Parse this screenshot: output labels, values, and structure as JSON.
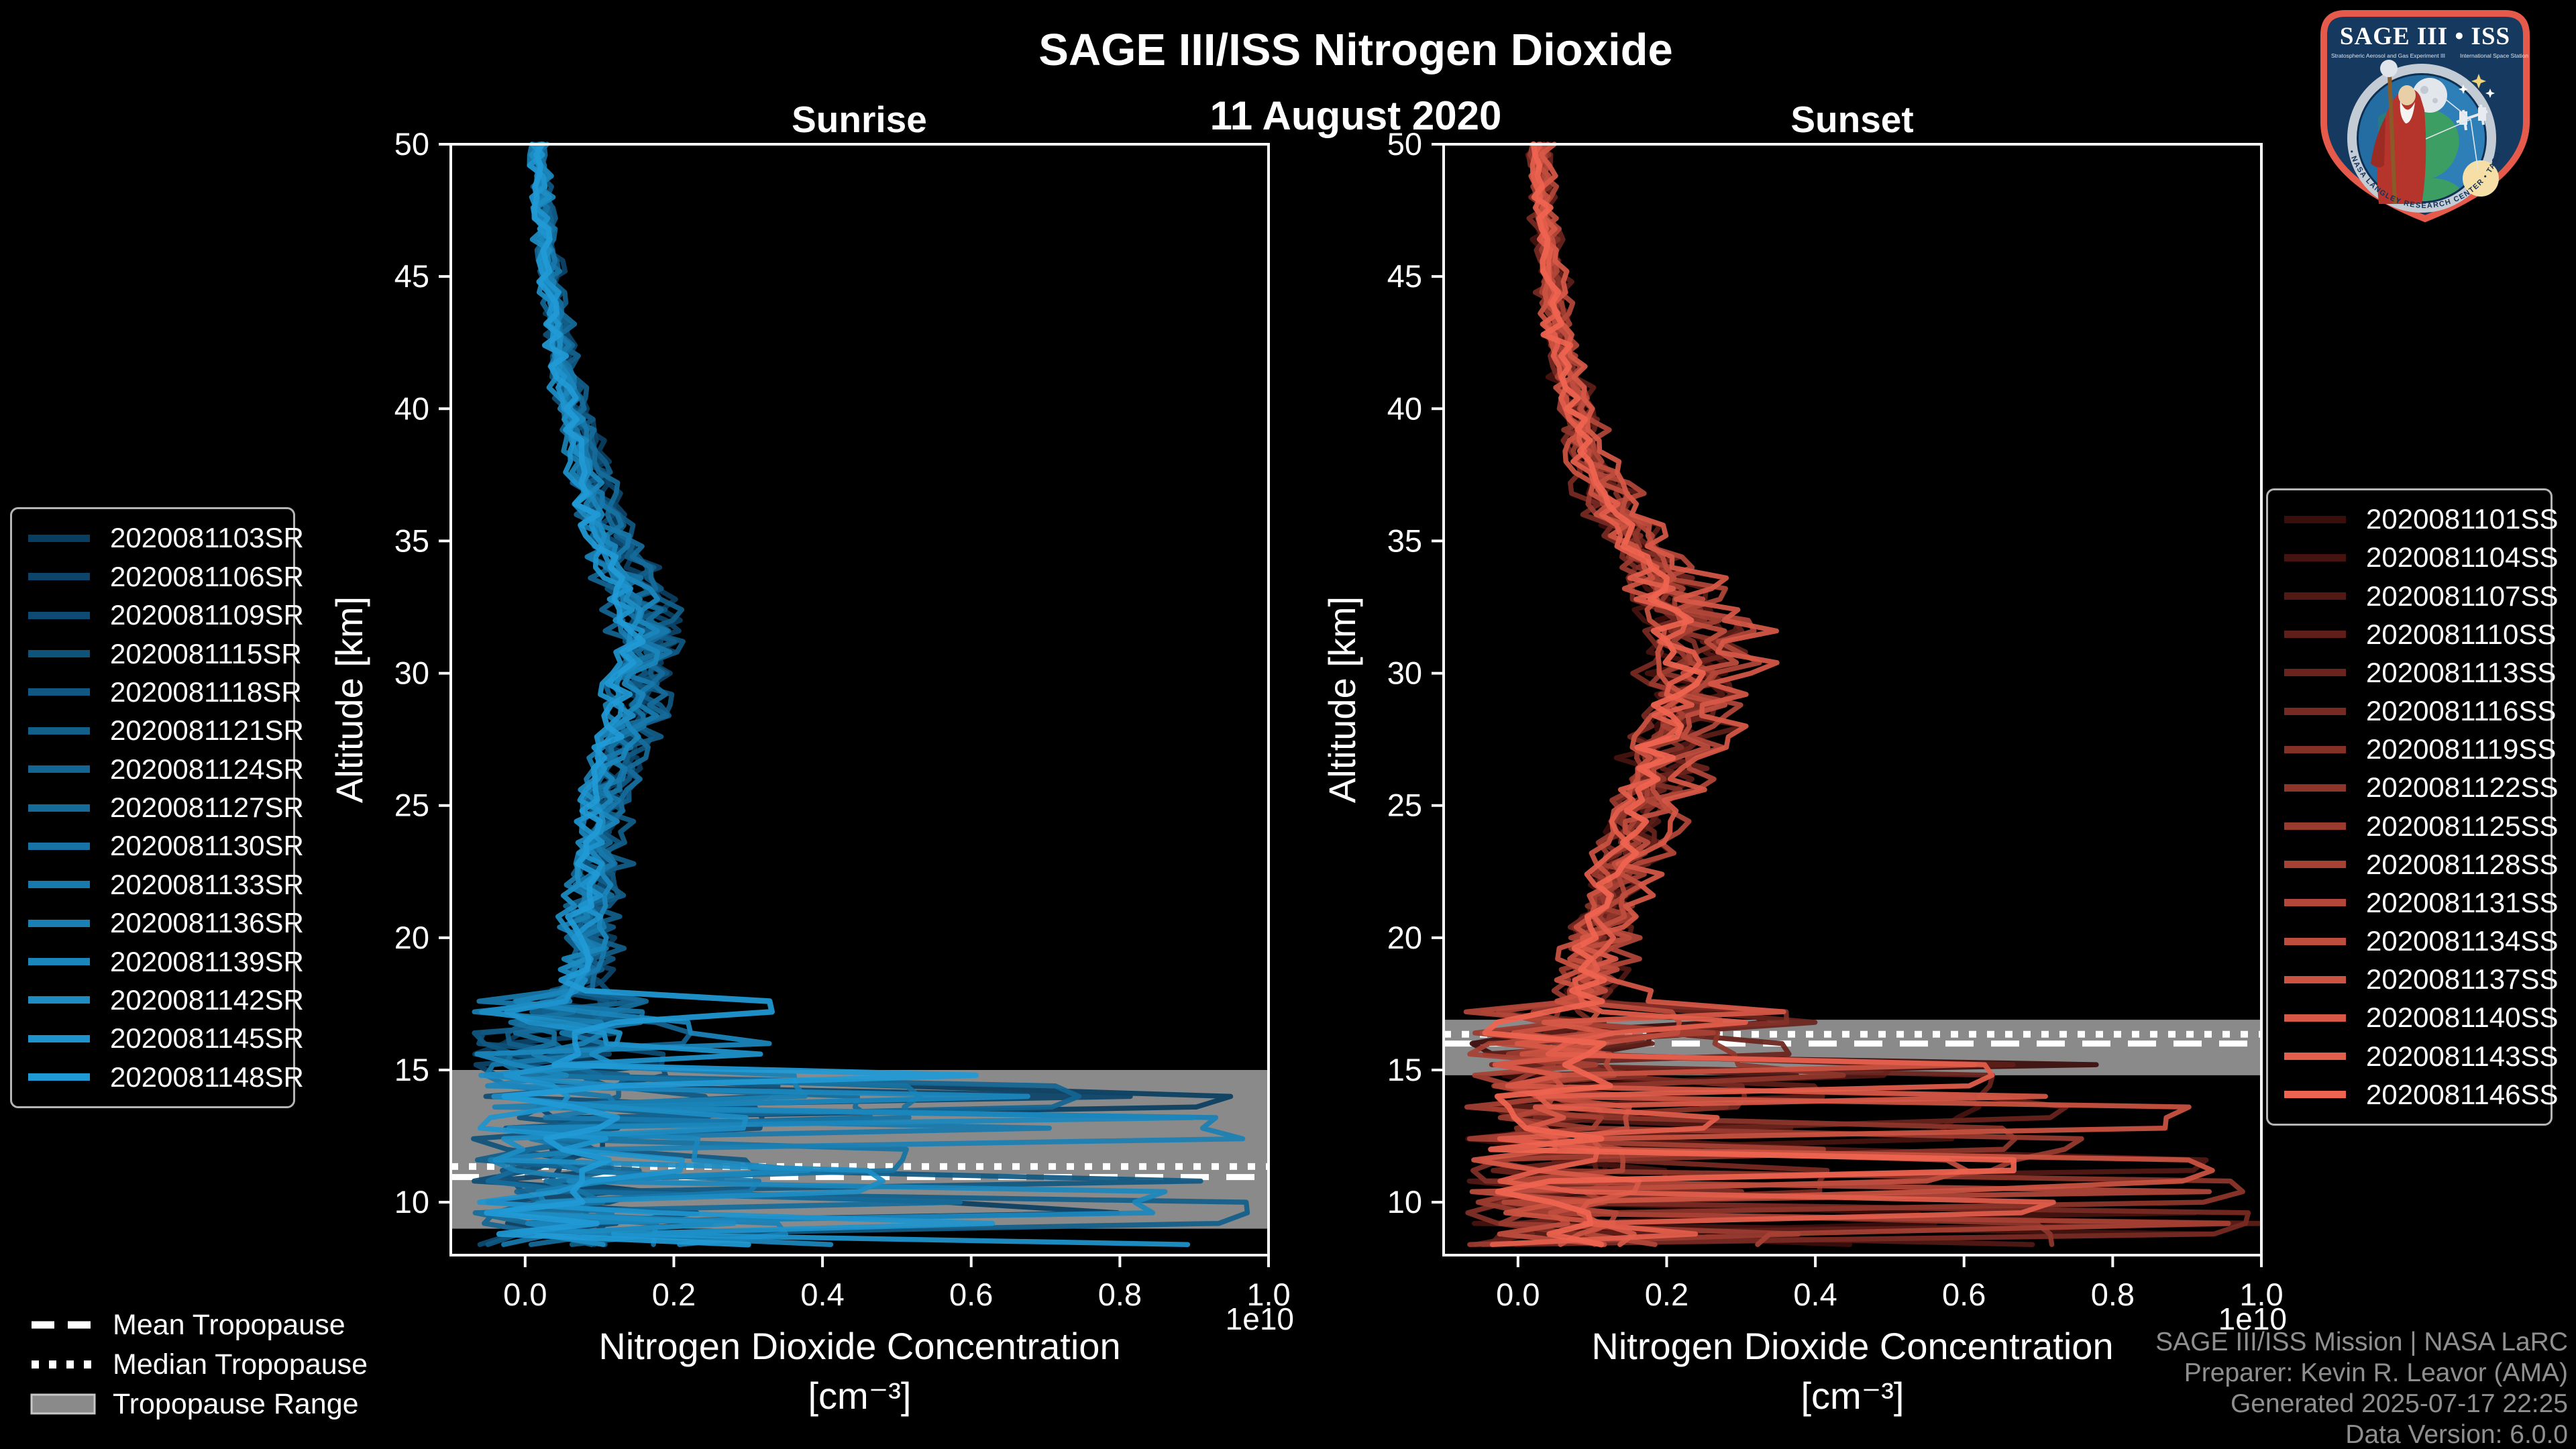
{
  "header": {
    "title": "SAGE III/ISS Nitrogen Dioxide",
    "date": "11 August 2020"
  },
  "colors": {
    "background": "#000000",
    "axis": "#ffffff",
    "tropopause_band": "#8a8a8a",
    "tropopause_line": "#ffffff",
    "footer_text": "#8f8f8f",
    "legend_border": "#b5b5b5"
  },
  "tropopause_legend": [
    {
      "label": "Mean Tropopause",
      "style": "dashed"
    },
    {
      "label": "Median Tropopause",
      "style": "dotted"
    },
    {
      "label": "Tropopause Range",
      "style": "band"
    }
  ],
  "footer": {
    "lines": [
      "SAGE III/ISS Mission | NASA LaRC",
      "Preparer: Kevin R. Leavor (AMA)",
      "Generated 2025-07-17 22:25",
      "Data Version: 6.0.0"
    ]
  },
  "logo": {
    "title": "SAGE III • ISS",
    "subtitle_left": "Stratospheric Aerosol and Gas Experiment III",
    "subtitle_right": "International Space Station",
    "ring_text": "BALL • NASA LANGLEY RESEARCH CENTER • TAS-I • ESA"
  },
  "chart_data": [
    {
      "type": "line",
      "title": "Sunrise",
      "xlabel": "Nitrogen Dioxide Concentration",
      "xlabel_units": "[cm⁻³]",
      "ylabel": "Altitude [km]",
      "x_offset_text": "1e10",
      "xlim": [
        -0.1,
        1.0
      ],
      "ylim": [
        8,
        50
      ],
      "x_ticks": [
        "0.0",
        "0.2",
        "0.4",
        "0.6",
        "0.8",
        "1.0"
      ],
      "y_ticks": [
        10,
        15,
        20,
        25,
        30,
        35,
        40,
        45,
        50
      ],
      "grid": false,
      "legend_position": "outside-left",
      "series": [
        "2020081103SR",
        "2020081106SR",
        "2020081109SR",
        "2020081115SR",
        "2020081118SR",
        "2020081121SR",
        "2020081124SR",
        "2020081127SR",
        "2020081130SR",
        "2020081133SR",
        "2020081136SR",
        "2020081139SR",
        "2020081142SR",
        "2020081145SR",
        "2020081148SR"
      ],
      "palette": {
        "start": "#0a3e61",
        "end": "#209ad5"
      },
      "mean_profile": {
        "altitude_km": [
          50,
          48,
          46,
          44,
          42,
          40,
          38,
          36,
          34,
          32,
          31,
          30,
          29,
          28,
          27,
          26,
          25,
          24,
          23,
          22,
          21,
          20,
          19,
          18
        ],
        "value_1e10": [
          0.018,
          0.024,
          0.03,
          0.04,
          0.05,
          0.065,
          0.085,
          0.105,
          0.135,
          0.16,
          0.165,
          0.155,
          0.15,
          0.14,
          0.13,
          0.12,
          0.11,
          0.105,
          0.1,
          0.095,
          0.09,
          0.085,
          0.08,
          0.075
        ]
      },
      "noise": {
        "rel": 0.16,
        "rel_max": 0.5,
        "rel_boost": 0.035,
        "rel_boost_below_km": 24,
        "abs": 0.012,
        "bundle_spread": 0.45,
        "spike_below_km": 18.0,
        "spike_prob": 0.26,
        "spike_tiers": [
          {
            "above_km": 15,
            "max": 0.45
          },
          {
            "above_km": 11,
            "max": 0.97
          },
          {
            "above_km": 0,
            "max": 1.06
          }
        ],
        "alt_step_km": 0.4,
        "alt_min_km": 8.4
      },
      "tropopause": {
        "mean_km": 10.95,
        "median_km": 11.35,
        "range_km": [
          9.0,
          15.0
        ]
      }
    },
    {
      "type": "line",
      "title": "Sunset",
      "xlabel": "Nitrogen Dioxide Concentration",
      "xlabel_units": "[cm⁻³]",
      "ylabel": "Altitude [km]",
      "x_offset_text": "1e10",
      "xlim": [
        -0.1,
        1.0
      ],
      "ylim": [
        8,
        50
      ],
      "x_ticks": [
        "0.0",
        "0.2",
        "0.4",
        "0.6",
        "0.8",
        "1.0"
      ],
      "y_ticks": [
        10,
        15,
        20,
        25,
        30,
        35,
        40,
        45,
        50
      ],
      "grid": false,
      "legend_position": "outside-right",
      "series": [
        "2020081101SS",
        "2020081104SS",
        "2020081107SS",
        "2020081110SS",
        "2020081113SS",
        "2020081116SS",
        "2020081119SS",
        "2020081122SS",
        "2020081125SS",
        "2020081128SS",
        "2020081131SS",
        "2020081134SS",
        "2020081137SS",
        "2020081140SS",
        "2020081143SS",
        "2020081146SS"
      ],
      "palette": {
        "start": "#3b0d0b",
        "end": "#ef6450"
      },
      "mean_profile": {
        "altitude_km": [
          50,
          48,
          46,
          44,
          42,
          40,
          38,
          36,
          34,
          32,
          31,
          30,
          29,
          28,
          27,
          26,
          25,
          24,
          23,
          22,
          21,
          20,
          19,
          18
        ],
        "value_1e10": [
          0.03,
          0.035,
          0.042,
          0.05,
          0.062,
          0.078,
          0.1,
          0.14,
          0.19,
          0.235,
          0.255,
          0.25,
          0.243,
          0.228,
          0.21,
          0.19,
          0.175,
          0.16,
          0.148,
          0.135,
          0.122,
          0.11,
          0.1,
          0.1
        ]
      },
      "noise": {
        "rel": 0.16,
        "rel_max": 0.55,
        "rel_boost": 0.04,
        "rel_boost_below_km": 24,
        "abs": 0.012,
        "bundle_spread": 0.45,
        "spike_below_km": 17.4,
        "spike_prob": 0.28,
        "spike_tiers": [
          {
            "above_km": 15.5,
            "max": 0.4
          },
          {
            "above_km": 11,
            "max": 0.95
          },
          {
            "above_km": 0,
            "max": 1.06
          }
        ],
        "alt_step_km": 0.4,
        "alt_min_km": 8.4
      },
      "tropopause": {
        "mean_km": 16.0,
        "median_km": 16.35,
        "range_km": [
          14.8,
          16.9
        ]
      }
    }
  ]
}
